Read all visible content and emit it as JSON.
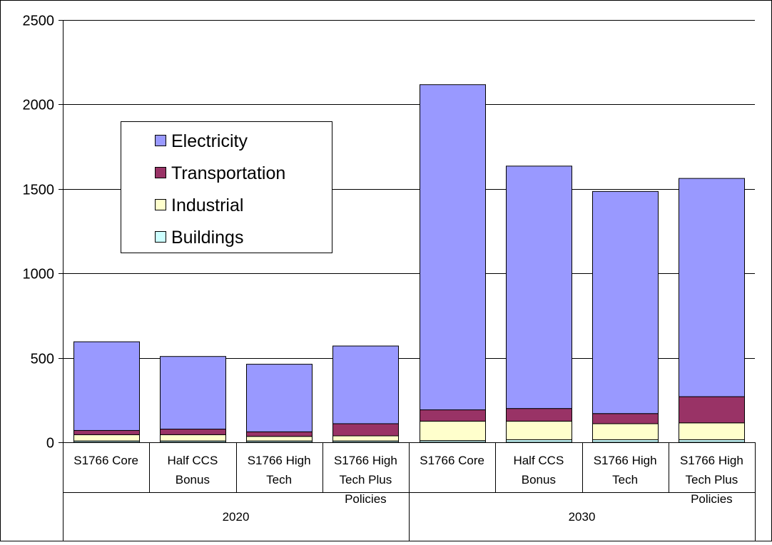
{
  "chart_data": {
    "type": "bar",
    "stacked": true,
    "title": "",
    "xlabel": "",
    "ylabel": "",
    "ylim": [
      0,
      2500
    ],
    "yticks": [
      "0",
      "500",
      "1000",
      "1500",
      "2000",
      "2500"
    ],
    "grid": true,
    "legend_position": "upper-left",
    "categories": [
      "S1766 Core",
      "Half CCS Bonus",
      "S1766 High Tech",
      "S1766 High Tech Plus Policies",
      "S1766 Core",
      "Half CCS Bonus",
      "S1766 High Tech",
      "S1766 High Tech Plus Policies"
    ],
    "category_label_lines": [
      [
        "S1766 Core"
      ],
      [
        "Half CCS",
        "Bonus"
      ],
      [
        "S1766 High",
        "Tech"
      ],
      [
        "S1766 High",
        "Tech Plus",
        "Policies"
      ],
      [
        "S1766 Core"
      ],
      [
        "Half CCS",
        "Bonus"
      ],
      [
        "S1766 High",
        "Tech"
      ],
      [
        "S1766 High",
        "Tech Plus",
        "Policies"
      ]
    ],
    "groups": [
      {
        "label": "2020",
        "start": 0,
        "end": 3
      },
      {
        "label": "2030",
        "start": 4,
        "end": 7
      }
    ],
    "series": [
      {
        "name": "Buildings",
        "color": "#ccffff",
        "values": [
          8,
          8,
          8,
          8,
          10,
          15,
          15,
          15
        ]
      },
      {
        "name": "Industrial",
        "color": "#ffffcc",
        "values": [
          37,
          37,
          27,
          30,
          115,
          110,
          95,
          100
        ]
      },
      {
        "name": "Transportation",
        "color": "#993366",
        "values": [
          25,
          33,
          27,
          72,
          67,
          75,
          60,
          155
        ]
      },
      {
        "name": "Electricity",
        "color": "#9999ff",
        "values": [
          525,
          430,
          400,
          460,
          1925,
          1435,
          1315,
          1292
        ]
      }
    ],
    "legend_order": [
      "Electricity",
      "Transportation",
      "Industrial",
      "Buildings"
    ]
  }
}
